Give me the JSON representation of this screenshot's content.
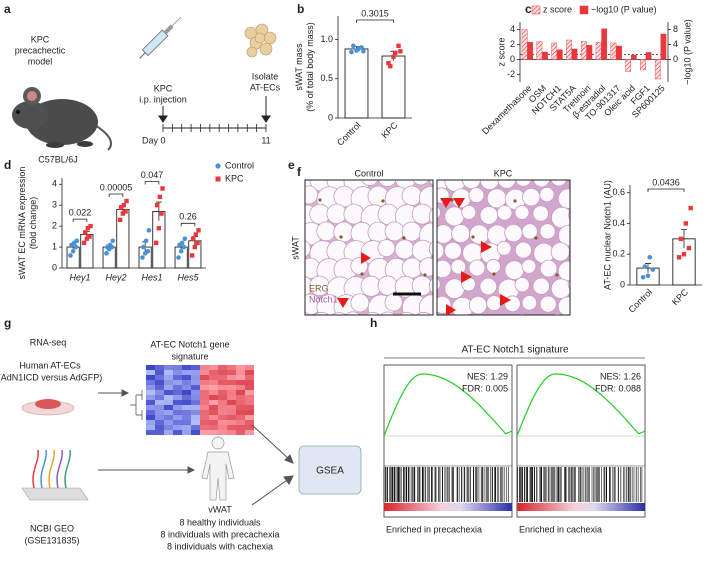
{
  "panels": {
    "a": {
      "label": "a",
      "model": [
        "KPC",
        "precachectic",
        "model"
      ],
      "strain": "C57BL/6J",
      "injection": [
        "KPC",
        "i.p. injection"
      ],
      "isolate": [
        "Isolate",
        "AT-ECs"
      ],
      "day": "Day",
      "day_start": "0",
      "day_end": "11"
    },
    "e": {
      "label": "e",
      "left_title": "Control",
      "right_title": "KPC",
      "tissue": "sWAT",
      "stain1": "ERG",
      "stain2": "Notch1"
    },
    "g": {
      "label": "g",
      "rnaseq": "RNA-seq",
      "cells": [
        "Human AT-ECs",
        "(AdN1ICD versus AdGFP)"
      ],
      "signature": [
        "AT-EC Notch1 gene",
        "signature"
      ],
      "geo": [
        "NCBI GEO",
        "(GSE131835)"
      ],
      "tissue": "vWAT",
      "groups": [
        "8 healthy individuals",
        "8 individuals with precachexia",
        "8 individuals with cachexia"
      ],
      "method": "GSEA"
    },
    "h": {
      "label": "h",
      "title": "AT-EC Notch1 signature",
      "plots": [
        {
          "nes": "NES: 1.29",
          "fdr": "FDR: 0.005",
          "caption": "Enriched in precachexia"
        },
        {
          "nes": "NES: 1.26",
          "fdr": "FDR: 0.088",
          "caption": "Enriched in cachexia"
        }
      ]
    }
  },
  "chart_data": [
    {
      "label": "b",
      "type": "bar",
      "ylabel": [
        "sWAT mass",
        "(% of total body mass)"
      ],
      "categories": [
        "Control",
        "KPC"
      ],
      "colors": [
        "#4a90d9",
        "#e8383d"
      ],
      "values": [
        0.88,
        0.79
      ],
      "errors": [
        0.03,
        0.06
      ],
      "points": [
        [
          0.84,
          0.86,
          0.9,
          0.92,
          0.88,
          0.85
        ],
        [
          0.7,
          0.78,
          0.92,
          0.66,
          0.83,
          0.85
        ]
      ],
      "annotations": [
        "0.3015"
      ],
      "ylim": [
        0,
        1.3
      ],
      "yticks": [
        0,
        0.5,
        {
          "value": 1,
          "label": "1.0"
        }
      ]
    },
    {
      "label": "c",
      "type": "bar",
      "ylabel": "z score",
      "y2label": "−log10 (P value)",
      "categories": [
        "Dexamethasone",
        "OSM",
        "NOTCH1",
        "STAT5A",
        "Tretinoin",
        "β-estradiol",
        "TO-901317",
        "Oleic acid",
        "FGF1",
        "SP600125"
      ],
      "series": [
        {
          "name": "z score",
          "color": "#e8383d",
          "pattern": "hatched",
          "values": [
            4.0,
            2.4,
            2.2,
            2.6,
            2.4,
            2.3,
            2.2,
            -1.6,
            -1.4,
            -2.6
          ]
        },
        {
          "name": "−log10 (P value)",
          "color": "#e8383d",
          "axis": "y2",
          "values": [
            4.6,
            2.0,
            2.6,
            2.8,
            3.8,
            8.2,
            3.6,
            1.2,
            1.9,
            6.8
          ]
        }
      ],
      "ylim": [
        -3,
        5
      ],
      "yticks": [
        -2,
        0,
        2,
        4
      ],
      "y2lim": [
        -6,
        10
      ],
      "y2ticks": [
        0,
        4,
        8
      ],
      "y2_reference": 1.3
    },
    {
      "label": "d",
      "type": "bar",
      "ylabel": [
        "sWAT EC mRNA expression",
        "(fold change)"
      ],
      "categories": [
        "Hey1",
        "Hey2",
        "Hes1",
        "Hes5"
      ],
      "series": [
        {
          "name": "Control",
          "color": "#4a90d9",
          "values": [
            1,
            1,
            1,
            1
          ],
          "errors": [
            0.12,
            0.1,
            0.25,
            0.15
          ],
          "points": [
            [
              0.6,
              0.8,
              1.0,
              1.1,
              1.2,
              1.3
            ],
            [
              0.7,
              0.9,
              1.0,
              1.0,
              1.1,
              1.3
            ],
            [
              0.5,
              0.7,
              0.8,
              1.0,
              1.3,
              1.8
            ],
            [
              0.5,
              0.8,
              1.0,
              1.1,
              1.2,
              1.4
            ]
          ]
        },
        {
          "name": "KPC",
          "color": "#e8383d",
          "values": [
            1.6,
            2.8,
            2.7,
            1.3
          ],
          "errors": [
            0.15,
            0.15,
            0.45,
            0.2
          ],
          "points": [
            [
              1.2,
              1.4,
              1.5,
              1.7,
              1.9,
              2.0
            ],
            [
              2.3,
              2.6,
              2.7,
              2.9,
              3.0,
              3.2
            ],
            [
              1.2,
              1.9,
              2.6,
              3.0,
              3.4,
              3.8
            ],
            [
              0.6,
              1.0,
              1.2,
              1.4,
              1.6,
              1.8
            ]
          ]
        }
      ],
      "annotations": [
        "0.022",
        "0.00005",
        "0.047",
        "0.26"
      ],
      "ylim": [
        0,
        4.3
      ],
      "yticks": [
        0,
        1,
        2,
        3,
        4
      ]
    },
    {
      "label": "f",
      "type": "bar",
      "ylabel": "AT-EC nuclear Notch1 (AU)",
      "categories": [
        "Control",
        "KPC"
      ],
      "colors": [
        "#4a90d9",
        "#e8383d"
      ],
      "values": [
        0.11,
        0.3
      ],
      "errors": [
        0.03,
        0.06
      ],
      "points": [
        [
          0.05,
          0.06,
          0.1,
          0.12,
          0.18
        ],
        [
          0.18,
          0.2,
          0.24,
          0.3,
          0.4,
          0.5
        ]
      ],
      "annotations": [
        "0.0436"
      ],
      "ylim": [
        0,
        0.65
      ],
      "yticks": [
        0,
        0.2,
        0.4,
        0.6
      ]
    }
  ]
}
